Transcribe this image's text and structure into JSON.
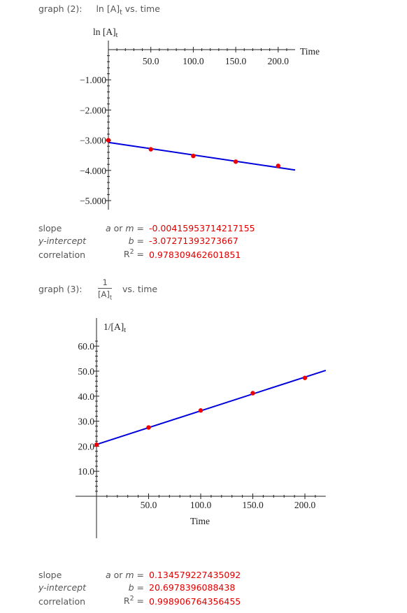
{
  "graph2": {
    "label": "graph (2):",
    "title_main": "ln [A]",
    "title_sub": "t",
    "title_tail": " vs. time",
    "slope_label": "slope",
    "intercept_label": "y-intercept",
    "correlation_label": "correlation",
    "slope_sym": "a or m =",
    "intercept_sym": "b =",
    "r2_sym": "R",
    "r2_sup": "2",
    "eq": "=",
    "slope_value": "-0.00415953714217155",
    "intercept_value": "-3.07271393273667",
    "r2_value": "0.978309462601851"
  },
  "graph3": {
    "label": "graph (3):",
    "frac_num": "1",
    "frac_den_main": "[A]",
    "frac_den_sub": "t",
    "title_tail": "vs. time",
    "slope_label": "slope",
    "intercept_label": "y-intercept",
    "correlation_label": "correlation",
    "slope_sym": "a or m =",
    "intercept_sym": "b =",
    "r2_sym": "R",
    "r2_sup": "2",
    "eq": "=",
    "slope_value": "0.134579227435092",
    "intercept_value": "20.6978396088438",
    "r2_value": "0.998906764356455"
  },
  "chart_data": [
    {
      "type": "scatter",
      "title": "ln [A]t vs. time",
      "ylabel": "ln [A]t",
      "xlabel": "Time",
      "xlim": [
        0,
        220
      ],
      "ylim": [
        -5.3,
        0
      ],
      "xticks": [
        "50.0",
        "100.0",
        "150.0",
        "200.0"
      ],
      "yticks": [
        "-1.000",
        "-2.000",
        "-3.000",
        "-4.000",
        "-5.000"
      ],
      "x": [
        0,
        50,
        100,
        150,
        200
      ],
      "y": [
        -3.0,
        -3.3,
        -3.52,
        -3.71,
        -3.85
      ],
      "fit": {
        "slope": -0.00415953714217155,
        "intercept": -3.07271393273667,
        "x_end": 220
      },
      "point_color": "#ee0000",
      "line_color": "#0000dd"
    },
    {
      "type": "scatter",
      "title": "1/[A]t vs. time",
      "ylabel": "1/[A]t",
      "xlabel": "Time",
      "xlim": [
        0,
        220
      ],
      "ylim": [
        0,
        62
      ],
      "xticks": [
        "50.0",
        "100.0",
        "150.0",
        "200.0"
      ],
      "yticks": [
        "10.0",
        "20.0",
        "30.0",
        "40.0",
        "50.0",
        "60.0"
      ],
      "x": [
        0,
        50,
        100,
        150,
        200
      ],
      "y": [
        20.6,
        27.5,
        34.3,
        41.2,
        47.3
      ],
      "fit": {
        "slope": 0.134579227435092,
        "intercept": 20.6978396088438,
        "x_end": 220
      },
      "point_color": "#ee0000",
      "line_color": "#0000dd"
    }
  ]
}
